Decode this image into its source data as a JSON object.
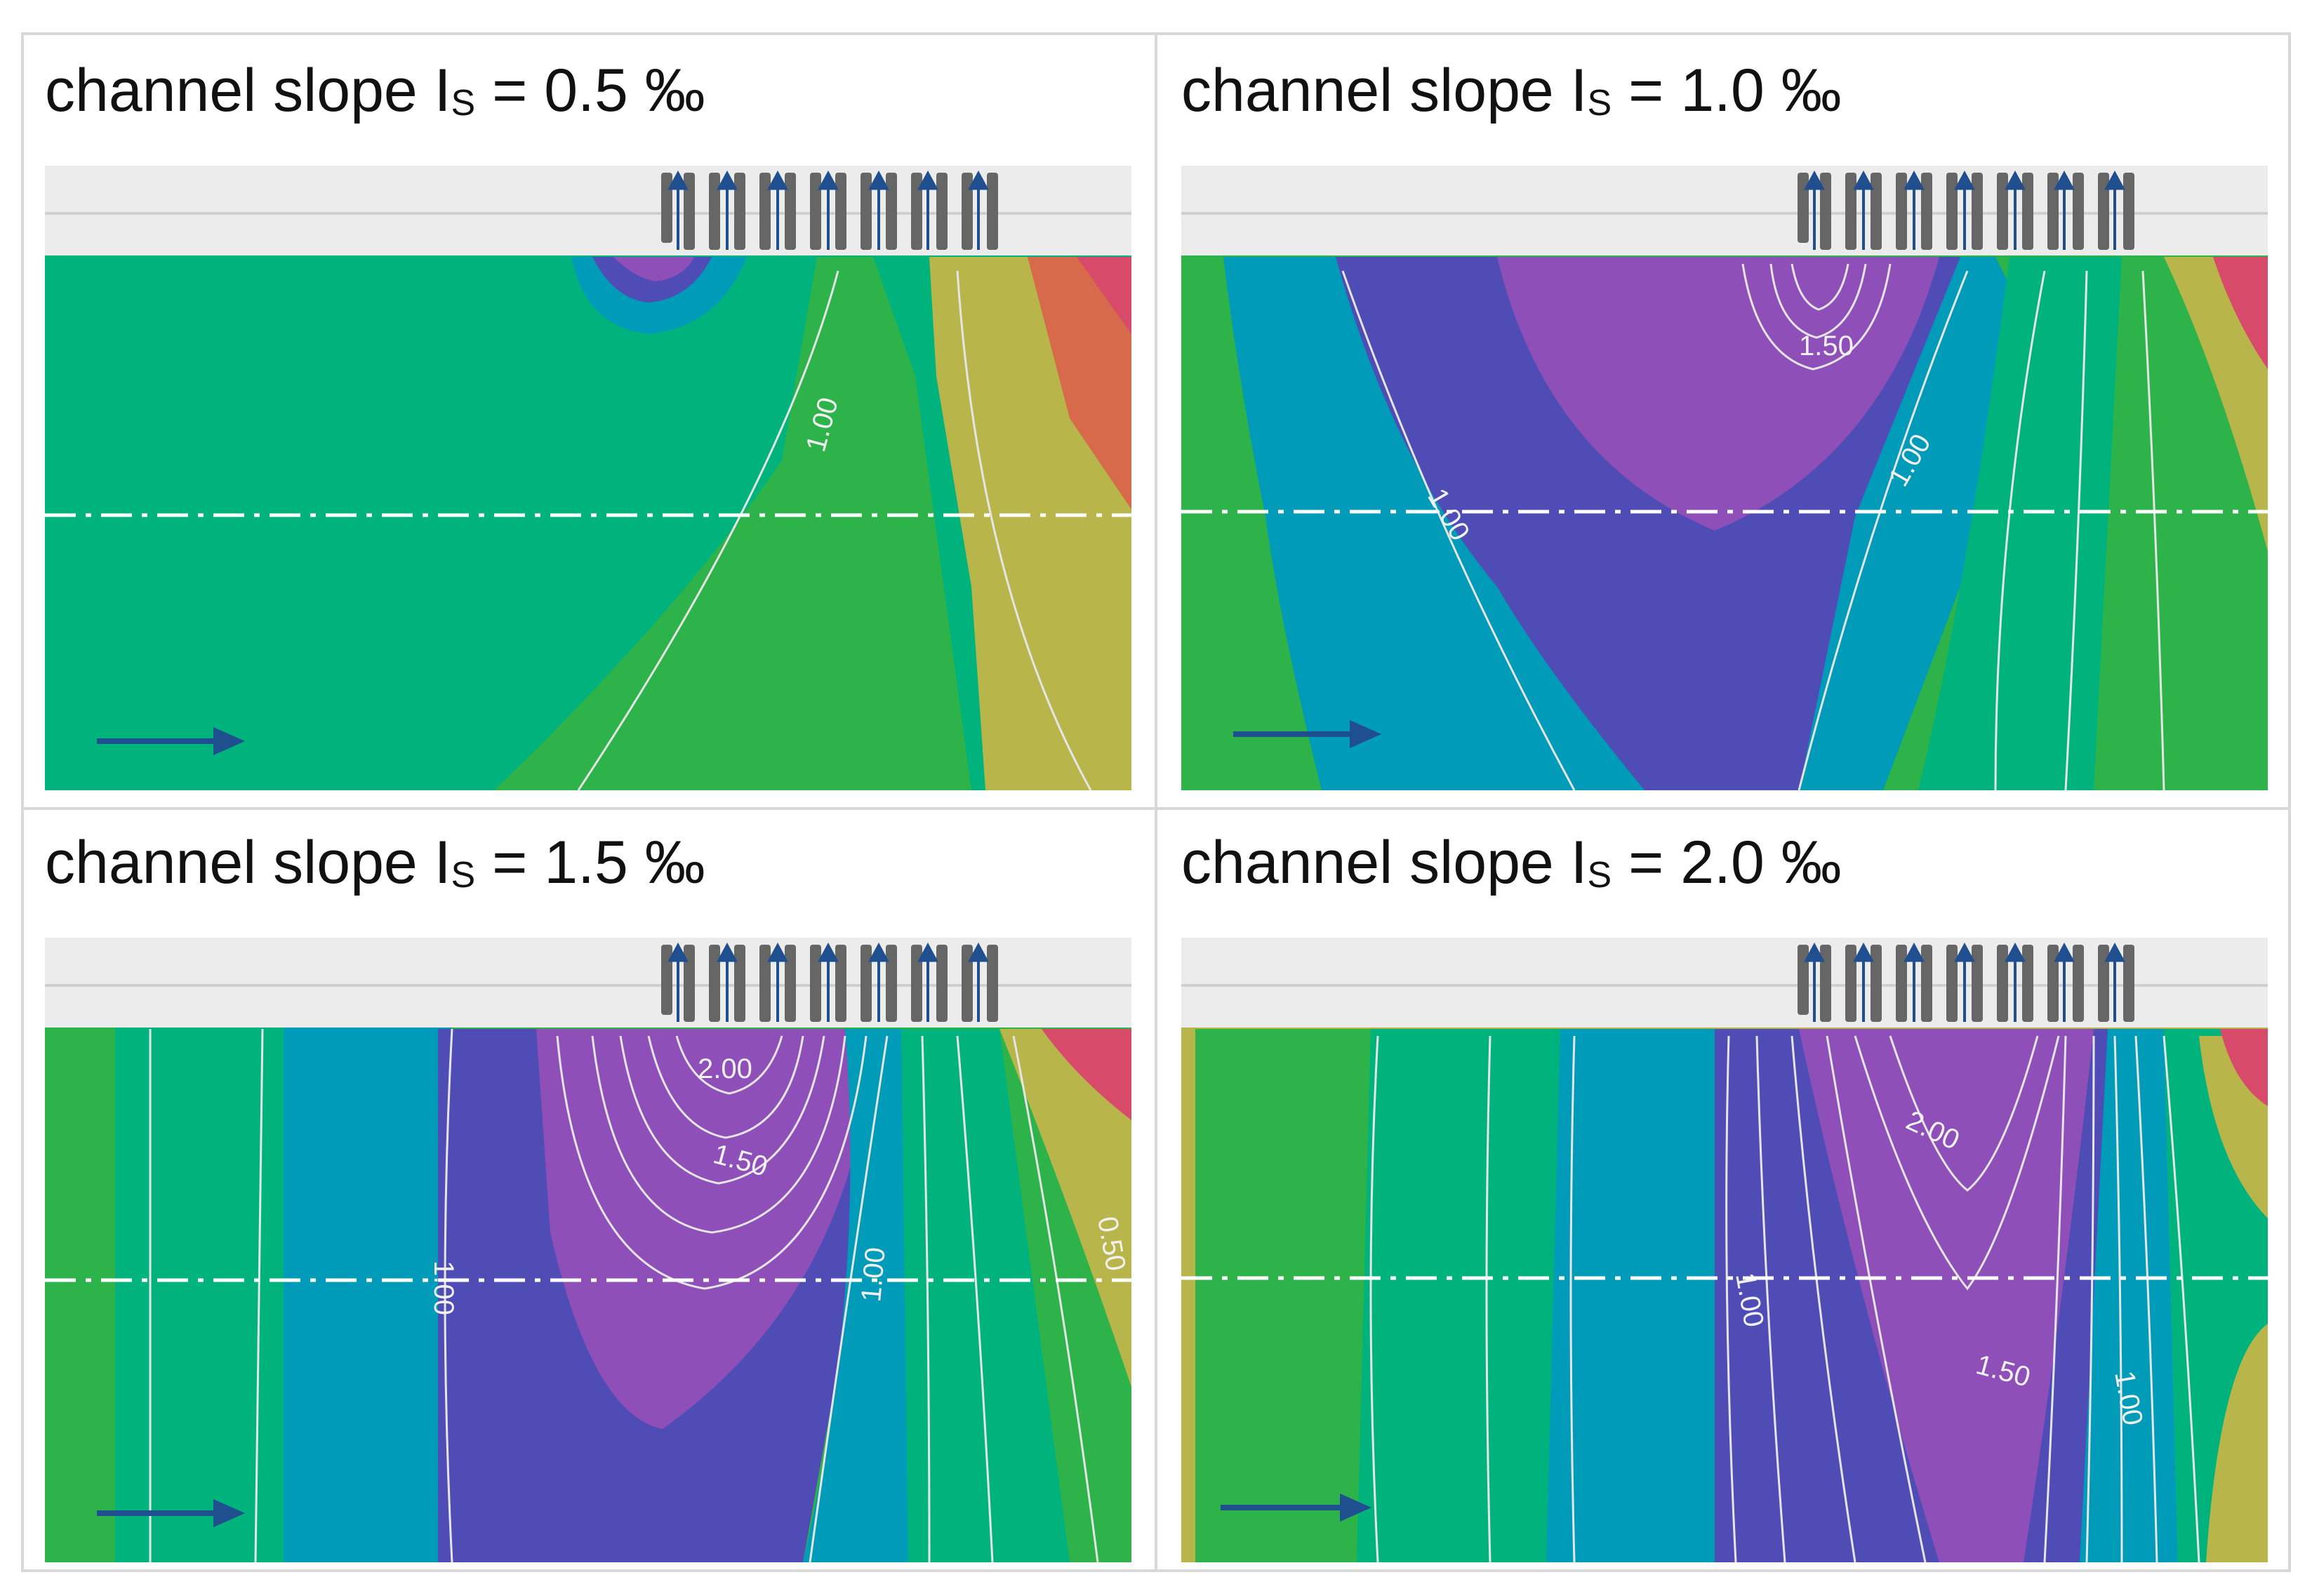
{
  "panels": [
    {
      "prefix": "channel slope I",
      "subscript": "S",
      "suffix": " = 0.5 ‰",
      "contour_labels": [
        "1.00"
      ]
    },
    {
      "prefix": "channel slope I",
      "subscript": "S",
      "suffix": " = 1.0 ‰",
      "contour_labels": [
        "1.50",
        "1.00",
        "1.00"
      ]
    },
    {
      "prefix": "channel slope I",
      "subscript": "S",
      "suffix": " = 1.5 ‰",
      "contour_labels": [
        "2.00",
        "1.50",
        "1.00",
        "1.00",
        "0.50"
      ]
    },
    {
      "prefix": "channel slope I",
      "subscript": "S",
      "suffix": " = 2.0 ‰",
      "contour_labels": [
        "2.00",
        "1.50",
        "1.00",
        "1.00"
      ]
    }
  ],
  "colors": {
    "green_teal": "#00b37d",
    "green": "#2db34a",
    "blue_teal": "#009bb8",
    "indigo": "#4f4db5",
    "purple": "#8e4fb9",
    "olive": "#b8b64a",
    "orange": "#d66a4a",
    "red": "#d84a6a",
    "wall": "#ececec",
    "arrow": "#1f4f8f"
  }
}
